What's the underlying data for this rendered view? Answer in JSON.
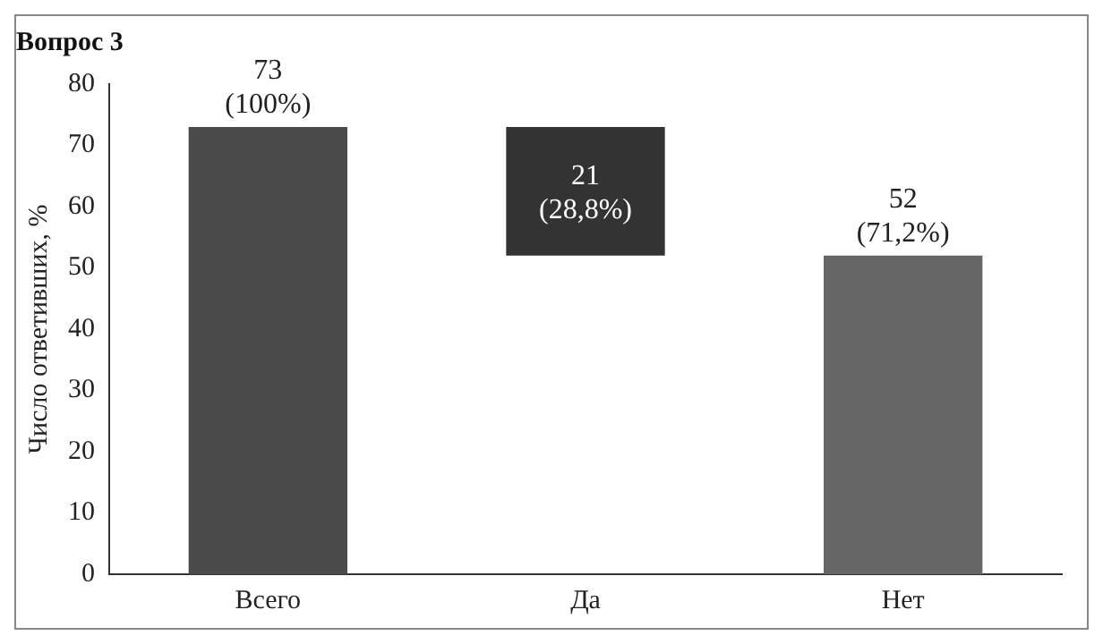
{
  "chart_data": {
    "type": "bar",
    "title": "Вопрос 3",
    "ylabel": "Число ответивших, %",
    "categories": [
      "Всего",
      "Да",
      "Нет"
    ],
    "values": [
      73,
      21,
      52
    ],
    "base": [
      0,
      52,
      0
    ],
    "colors": [
      "#4a4a4a",
      "#333333",
      "#666666"
    ],
    "value_labels": [
      "73\n(100%)",
      "21\n(28,8%)",
      "52\n(71,2%)"
    ],
    "ylim": [
      0,
      80
    ],
    "yticks": [
      0,
      10,
      20,
      30,
      40,
      50,
      60,
      70,
      80
    ],
    "grid": false,
    "legend": false
  }
}
